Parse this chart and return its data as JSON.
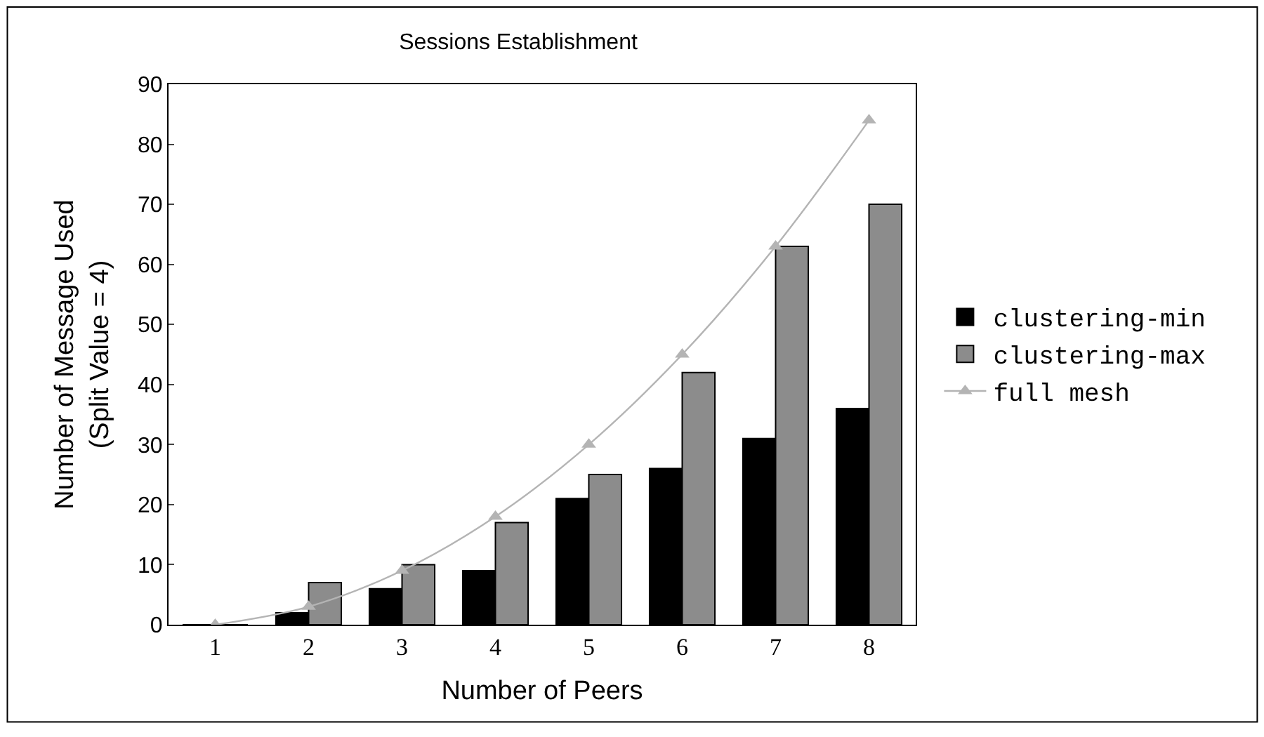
{
  "chart_data": {
    "type": "bar",
    "title": "Sessions Establishment",
    "xlabel": "Number of Peers",
    "ylabel": "Number of Message Used\n(Split Value = 4)",
    "categories": [
      "1",
      "2",
      "3",
      "4",
      "5",
      "6",
      "7",
      "8"
    ],
    "series": [
      {
        "name": "clustering-min",
        "color": "#000000",
        "values": [
          0,
          2,
          6,
          9,
          21,
          26,
          31,
          36
        ]
      },
      {
        "name": "clustering-max",
        "color": "#8c8c8c",
        "values": [
          0,
          7,
          10,
          17,
          25,
          42,
          63,
          70
        ]
      },
      {
        "name": "full mesh",
        "type": "line",
        "color": "#b4b4b4",
        "marker": "triangle",
        "values": [
          0,
          3,
          9,
          18,
          30,
          45,
          63,
          84
        ]
      }
    ],
    "ylim": [
      0,
      90
    ],
    "yticks": [
      0,
      10,
      20,
      30,
      40,
      50,
      60,
      70,
      80,
      90
    ],
    "legend": "right"
  }
}
